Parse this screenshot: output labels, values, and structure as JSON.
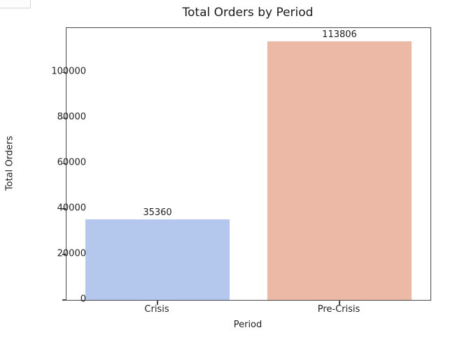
{
  "chart_data": {
    "type": "bar",
    "title": "Total Orders by Period",
    "xlabel": "Period",
    "ylabel": "Total Orders",
    "categories": [
      "Crisis",
      "Pre-Crisis"
    ],
    "values": [
      35360,
      113806
    ],
    "bar_value_labels": [
      "35360",
      "113806"
    ],
    "bar_colors": [
      "#b4c8ed",
      "#ebb9a6"
    ],
    "yticks": [
      0,
      20000,
      40000,
      60000,
      80000,
      100000
    ],
    "ylim": [
      0,
      119500
    ],
    "grid": false,
    "legend_position": "none"
  },
  "colors": {
    "spine": "#4a4a4a",
    "text": "#1f1f1f",
    "background": "#ffffff"
  }
}
